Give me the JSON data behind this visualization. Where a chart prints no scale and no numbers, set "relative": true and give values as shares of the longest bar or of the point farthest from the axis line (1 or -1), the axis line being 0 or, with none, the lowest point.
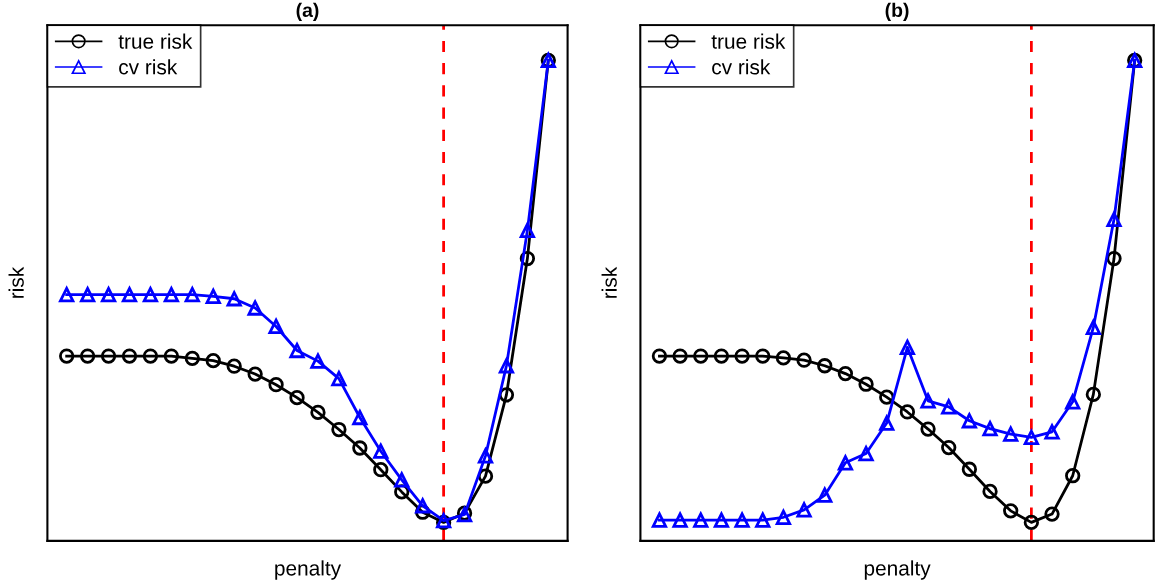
{
  "chart_data": [
    {
      "type": "line",
      "title": "(a)",
      "xlabel": "penalty",
      "ylabel": "risk",
      "relative": true,
      "tick_labels": false,
      "legend": "top left",
      "categories": [
        null,
        null,
        null,
        null,
        null,
        null,
        null,
        null,
        null,
        null,
        null,
        null,
        null,
        null,
        null,
        null,
        null,
        null,
        null,
        null,
        null,
        null,
        null,
        null
      ],
      "series": [
        {
          "name": "true risk",
          "color": "#000000",
          "marker": "circle",
          "line_style": "solid",
          "values": [
            0.36,
            0.36,
            0.36,
            0.36,
            0.36,
            0.36,
            0.355,
            0.35,
            0.338,
            0.321,
            0.298,
            0.27,
            0.238,
            0.201,
            0.161,
            0.114,
            0.066,
            0.022,
            0,
            0.02,
            0.1,
            0.276,
            0.571,
            1
          ]
        },
        {
          "name": "cv risk",
          "color": "#0000ff",
          "marker": "triangle",
          "line_style": "solid",
          "values": [
            0.493,
            0.493,
            0.493,
            0.493,
            0.493,
            0.493,
            0.493,
            0.489,
            0.484,
            0.464,
            0.424,
            0.372,
            0.349,
            0.311,
            0.227,
            0.154,
            0.092,
            0.036,
            0.004,
            0.017,
            0.144,
            0.339,
            0.632,
            1
          ]
        }
      ]
    },
    {
      "type": "line",
      "title": "(b)",
      "xlabel": "penalty",
      "ylabel": "risk",
      "relative": true,
      "tick_labels": false,
      "legend": "top left",
      "categories": [
        null,
        null,
        null,
        null,
        null,
        null,
        null,
        null,
        null,
        null,
        null,
        null,
        null,
        null,
        null,
        null,
        null,
        null,
        null,
        null,
        null,
        null,
        null,
        null
      ],
      "series": [
        {
          "name": "true risk",
          "color": "#000000",
          "marker": "circle",
          "line_style": "solid",
          "values": [
            0.36,
            0.36,
            0.36,
            0.36,
            0.36,
            0.36,
            0.356,
            0.351,
            0.339,
            0.322,
            0.299,
            0.271,
            0.239,
            0.202,
            0.162,
            0.115,
            0.067,
            0.025,
            0,
            0.018,
            0.101,
            0.277,
            0.571,
            1
          ]
        },
        {
          "name": "cv risk",
          "color": "#0000ff",
          "marker": "triangle",
          "line_style": "solid",
          "values": [
            0.005,
            0.005,
            0.005,
            0.005,
            0.005,
            0.005,
            0.011,
            0.027,
            0.059,
            0.129,
            0.149,
            0.215,
            0.379,
            0.263,
            0.25,
            0.22,
            0.203,
            0.191,
            0.184,
            0.196,
            0.261,
            0.422,
            0.656,
            1
          ]
        }
      ]
    }
  ]
}
